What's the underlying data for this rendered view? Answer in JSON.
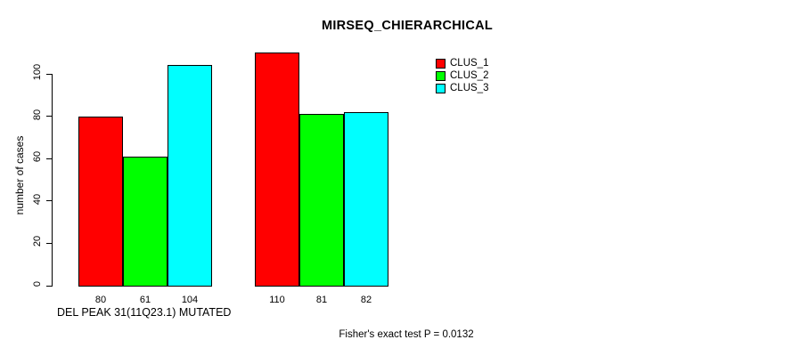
{
  "chart_data": {
    "type": "bar",
    "title": "MIRSEQ_CHIERARCHICAL",
    "ylabel": "number of cases",
    "xlabel": "DEL PEAK 31(11Q23.1) MUTATED",
    "annotation": "Fisher's exact test P = 0.0132",
    "yticks": [
      0,
      20,
      40,
      60,
      80,
      100
    ],
    "ylim": [
      0,
      113
    ],
    "grid": false,
    "legend_position": "top-right",
    "group_labels": [
      "DEL PEAK 31(11Q23.1) MUTATED",
      ""
    ],
    "series": [
      {
        "name": "CLUS_1",
        "color": "#ff0000",
        "values": [
          80,
          110
        ]
      },
      {
        "name": "CLUS_2",
        "color": "#00ff00",
        "values": [
          61,
          81
        ]
      },
      {
        "name": "CLUS_3",
        "color": "#00ffff",
        "values": [
          104,
          82
        ]
      }
    ],
    "bar_value_labels": [
      [
        "80",
        "61",
        "104"
      ],
      [
        "110",
        "81",
        "82"
      ]
    ],
    "colors": {
      "background": "#ffffff",
      "text": "#000000",
      "axis": "#000000"
    }
  }
}
